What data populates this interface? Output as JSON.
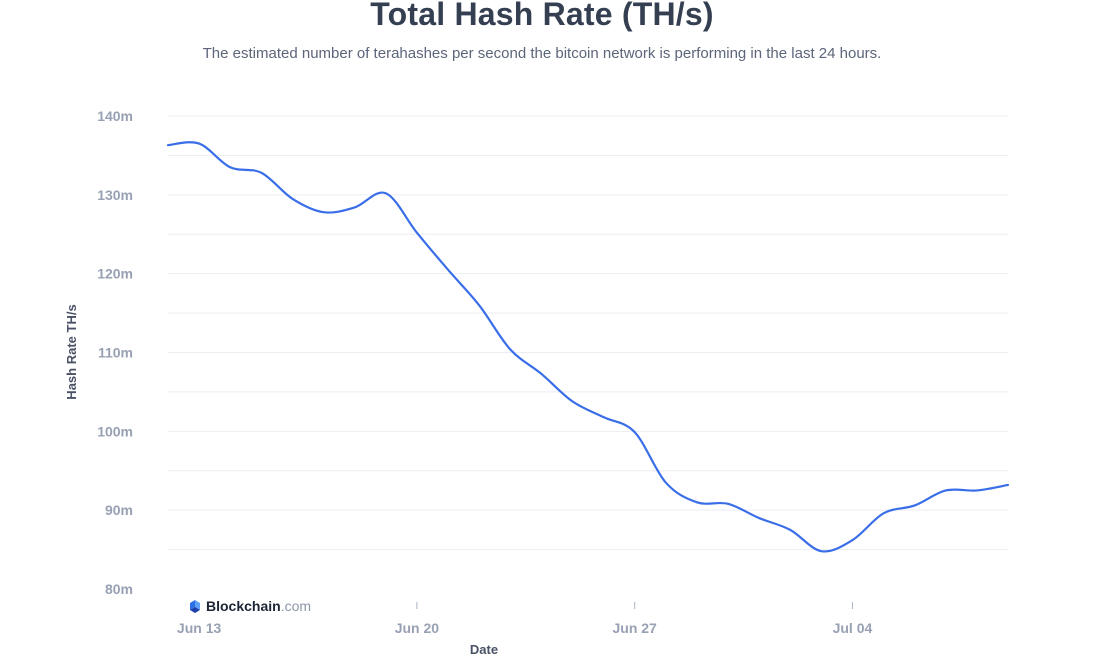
{
  "header": {
    "title": "Total Hash Rate (TH/s)",
    "subtitle": "The estimated number of terahashes per second the bitcoin network is performing in the last 24 hours."
  },
  "watermark": {
    "name": "Blockchain",
    "suffix": ".com"
  },
  "colors": {
    "line": "#3a6ee8",
    "grid": "#eceef3",
    "tick": "#98a1b3",
    "axis_title": "#4a5266"
  },
  "chart_data": {
    "type": "line",
    "title": "Total Hash Rate (TH/s)",
    "subtitle": "The estimated number of terahashes per second the bitcoin network is performing in the last 24 hours.",
    "xlabel": "Date",
    "ylabel": "Hash Rate TH/s",
    "ylim": [
      80,
      140
    ],
    "y_unit": "m",
    "yticks": [
      80,
      90,
      100,
      110,
      120,
      130,
      140
    ],
    "ytick_labels": [
      "80m",
      "90m",
      "100m",
      "110m",
      "120m",
      "130m",
      "140m"
    ],
    "xlim": [
      "2021-06-12",
      "2021-07-09"
    ],
    "xticks": [
      "2021-06-13",
      "2021-06-20",
      "2021-06-27",
      "2021-07-04"
    ],
    "xtick_labels": [
      "Jun 13",
      "Jun 20",
      "Jun 27",
      "Jul 04"
    ],
    "grid": true,
    "legend": "none",
    "series": [
      {
        "x": [
          "2021-06-12",
          "2021-06-13",
          "2021-06-14",
          "2021-06-15",
          "2021-06-16",
          "2021-06-17",
          "2021-06-18",
          "2021-06-19",
          "2021-06-20",
          "2021-06-21",
          "2021-06-22",
          "2021-06-23",
          "2021-06-24",
          "2021-06-25",
          "2021-06-26",
          "2021-06-27",
          "2021-06-28",
          "2021-06-29",
          "2021-06-30",
          "2021-07-01",
          "2021-07-02",
          "2021-07-03",
          "2021-07-04",
          "2021-07-05",
          "2021-07-06",
          "2021-07-07",
          "2021-07-08",
          "2021-07-09"
        ],
        "values": [
          136.3,
          136.5,
          133.5,
          132.8,
          129.5,
          127.8,
          128.4,
          130.2,
          125.2,
          120.5,
          116.0,
          110.4,
          107.3,
          103.8,
          101.8,
          99.9,
          93.5,
          91.0,
          90.8,
          89.0,
          87.5,
          84.8,
          86.2,
          89.6,
          90.6,
          92.5,
          92.5,
          93.2
        ]
      }
    ]
  }
}
